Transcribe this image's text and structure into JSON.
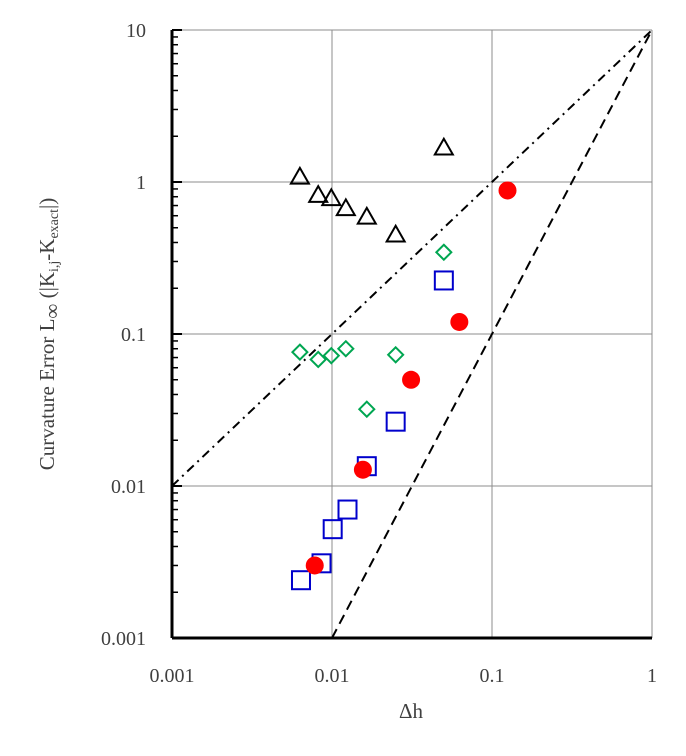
{
  "chart_data": {
    "type": "scatter",
    "title": "",
    "xlabel": "Δh",
    "ylabel": {
      "main": "Curvature Error L",
      "inf": "∞",
      "open": " (|K",
      "sub1": "i,j",
      "mid": "-K",
      "sub2": "exact",
      "close": "|)"
    },
    "x_scale": "log",
    "y_scale": "log",
    "xlim": [
      0.001,
      1
    ],
    "ylim": [
      0.001,
      10
    ],
    "x_ticks": [
      "0.001",
      "0.01",
      "0.1",
      "1"
    ],
    "y_ticks": [
      "0.001",
      "0.01",
      "0.1",
      "1",
      "10"
    ],
    "grid": true,
    "legend": "none",
    "series": [
      {
        "marker": "triangle-open",
        "color": "#000000",
        "points": [
          [
            0.0063,
            1.08
          ],
          [
            0.0082,
            0.82
          ],
          [
            0.0099,
            0.78
          ],
          [
            0.0122,
            0.67
          ],
          [
            0.0165,
            0.59
          ],
          [
            0.025,
            0.45
          ],
          [
            0.05,
            1.68
          ]
        ]
      },
      {
        "marker": "diamond-open",
        "color": "#00a651",
        "points": [
          [
            0.0063,
            0.076
          ],
          [
            0.0082,
            0.068
          ],
          [
            0.0099,
            0.072
          ],
          [
            0.0122,
            0.08
          ],
          [
            0.0165,
            0.032
          ],
          [
            0.025,
            0.073
          ],
          [
            0.05,
            0.345
          ]
        ]
      },
      {
        "marker": "square-open",
        "color": "#0000cc",
        "points": [
          [
            0.0064,
            0.0024
          ],
          [
            0.0086,
            0.0031
          ],
          [
            0.0101,
            0.0052
          ],
          [
            0.0125,
            0.007
          ],
          [
            0.0165,
            0.0135
          ],
          [
            0.025,
            0.0265
          ],
          [
            0.05,
            0.225
          ]
        ]
      },
      {
        "marker": "circle-filled",
        "color": "#ff0000",
        "points": [
          [
            0.0078,
            0.003
          ],
          [
            0.0156,
            0.0128
          ],
          [
            0.0312,
            0.05
          ],
          [
            0.0625,
            0.12
          ],
          [
            0.125,
            0.88
          ]
        ]
      }
    ],
    "reference_lines": [
      {
        "style": "dash-dot",
        "color": "#000000",
        "points": [
          [
            0.001,
            0.01
          ],
          [
            1,
            10
          ]
        ]
      },
      {
        "style": "dash",
        "color": "#000000",
        "points": [
          [
            0.01,
            0.001
          ],
          [
            1,
            10
          ]
        ]
      }
    ]
  }
}
